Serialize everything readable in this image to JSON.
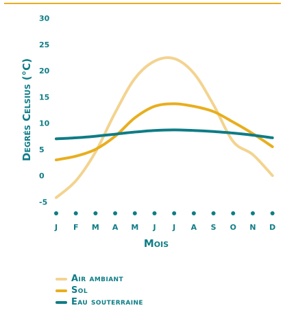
{
  "chart_data": {
    "type": "line",
    "title": "",
    "xlabel": "Mois",
    "ylabel": "Degrés Celsius (°C)",
    "categories": [
      "J",
      "F",
      "M",
      "A",
      "M",
      "J",
      "J",
      "A",
      "S",
      "O",
      "N",
      "D"
    ],
    "ylim": [
      -5,
      30
    ],
    "yticks": [
      30,
      25,
      20,
      15,
      10,
      5,
      0,
      -5
    ],
    "grid": false,
    "legend_position": "bottom",
    "series": [
      {
        "name": "Air ambiant",
        "color": "#F3D38F",
        "values": [
          -4.2,
          -1,
          4.5,
          12,
          18.5,
          21.8,
          22.3,
          19.5,
          13.5,
          6.5,
          4,
          0
        ]
      },
      {
        "name": "Sol",
        "color": "#E8AE1E",
        "values": [
          3,
          3.7,
          5,
          7.5,
          11,
          13.2,
          13.7,
          13.2,
          12.2,
          10.2,
          8,
          5.5
        ]
      },
      {
        "name": "Eau souterraine",
        "color": "#0E7C86",
        "values": [
          7,
          7.2,
          7.5,
          7.9,
          8.3,
          8.6,
          8.7,
          8.6,
          8.4,
          8.1,
          7.7,
          7.2
        ]
      }
    ]
  },
  "colors": {
    "text": "#0E7C86",
    "rule": "#E8AE1E"
  }
}
